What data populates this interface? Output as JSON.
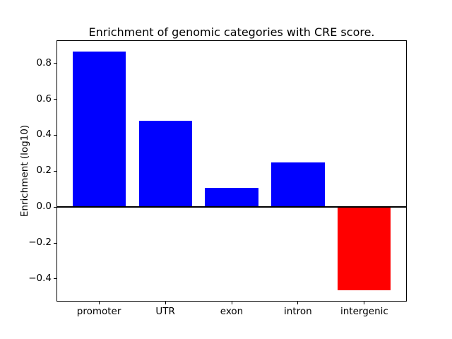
{
  "chart_data": {
    "type": "bar",
    "title": "Enrichment of genomic categories with CRE score.",
    "ylabel": "Enrichment (log10)",
    "xlabel": "",
    "categories": [
      "promoter",
      "UTR",
      "exon",
      "intron",
      "intergenic"
    ],
    "values": [
      0.865,
      0.48,
      0.105,
      0.247,
      -0.465
    ],
    "bar_colors": [
      "#0000ff",
      "#0000ff",
      "#0000ff",
      "#0000ff",
      "#ff0000"
    ],
    "positive_color": "#0000ff",
    "negative_color": "#ff0000",
    "yticks": [
      0.8,
      0.6,
      0.4,
      0.2,
      0.0,
      -0.2,
      -0.4
    ],
    "ytick_labels": [
      "0.8",
      "0.6",
      "0.4",
      "0.2",
      "0.0",
      "−0.2",
      "−0.4"
    ],
    "ylim": [
      -0.5265,
      0.9285
    ],
    "xlim": [
      -0.64,
      4.64
    ],
    "bar_width": 0.8,
    "grid": false,
    "legend": false,
    "zero_line": true,
    "zero_line_color": "#000000",
    "frame_color": "#000000",
    "background_color": "#ffffff"
  }
}
